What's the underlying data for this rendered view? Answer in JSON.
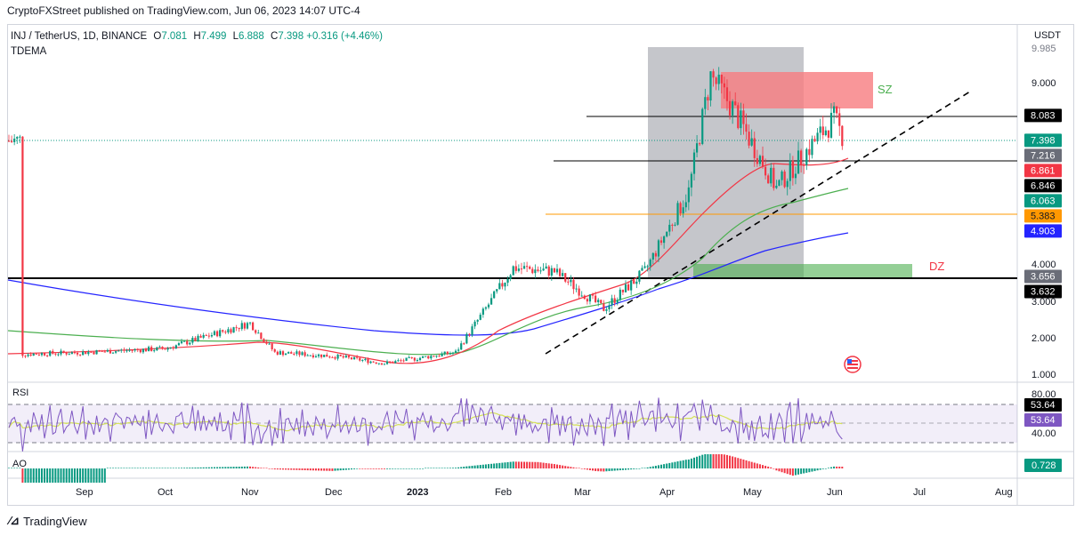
{
  "header": {
    "attribution": "CryptoFXStreet published on TradingView.com, Jun 06, 2023 14:07 UTC-4",
    "symbol": "INJ / TetherUS, 1D, BINANCE",
    "open_label": "O",
    "open": "7.081",
    "high_label": "H",
    "high": "7.499",
    "low_label": "L",
    "low": "6.888",
    "close_label": "C",
    "close": "7.398",
    "change": "+0.316 (+4.46%)",
    "indicator": "TDEMA"
  },
  "price_axis": {
    "unit": "USDT",
    "ticks": [
      "9.000",
      "4.000",
      "3.000",
      "2.000",
      "1.000"
    ],
    "partial_top": "9.985"
  },
  "time_axis": [
    "Sep",
    "Oct",
    "Nov",
    "Dec",
    "2023",
    "Feb",
    "Mar",
    "Apr",
    "May",
    "Jun",
    "Jul",
    "Aug"
  ],
  "zones": {
    "supply": "SZ",
    "demand": "DZ"
  },
  "price_labels": [
    {
      "text": "8.083",
      "bg": "#000000",
      "fg": "#ffffff",
      "value": 8.083
    },
    {
      "text": "7.398",
      "bg": "#089981",
      "fg": "#ffffff",
      "value": 7.398
    },
    {
      "text": "7.216",
      "bg": "#6a6d78",
      "fg": "#ffffff",
      "value": 7.216
    },
    {
      "text": "6.861",
      "bg": "#f23645",
      "fg": "#ffffff",
      "value": 6.861
    },
    {
      "text": "6.846",
      "bg": "#000000",
      "fg": "#ffffff",
      "value": 6.846
    },
    {
      "text": "6.063",
      "bg": "#089981",
      "fg": "#ffffff",
      "value": 6.063
    },
    {
      "text": "5.383",
      "bg": "#ff9800",
      "fg": "#131722",
      "value": 5.383
    },
    {
      "text": "4.903",
      "bg": "#2424ff",
      "fg": "#ffffff",
      "value": 4.903
    },
    {
      "text": "3.656",
      "bg": "#6a6d78",
      "fg": "#ffffff",
      "value": 3.656
    },
    {
      "text": "3.632",
      "bg": "#000000",
      "fg": "#ffffff",
      "value": 3.632
    }
  ],
  "rsi": {
    "label": "RSI",
    "ticks": [
      "80.00",
      "40.00"
    ],
    "value_labels": [
      "53.64",
      "53.64"
    ]
  },
  "ao": {
    "label": "AO",
    "value": "0.728"
  },
  "footer": {
    "brand": "TradingView"
  },
  "colors": {
    "up": "#089981",
    "down": "#f23645",
    "tdema_red": "#f23645",
    "tdema_green": "#4caf50",
    "tdema_blue": "#2424ff",
    "rsi_line": "#7e57c2",
    "rsi_ma": "#d4e157"
  },
  "chart_data": {
    "type": "candlestick",
    "x_range": [
      "2023-08-05",
      "2023-08-22"
    ],
    "period": "1D",
    "closes_approx": [
      {
        "date": "2022-08-10",
        "close": 1.55
      },
      {
        "date": "2022-09-01",
        "close": 1.6
      },
      {
        "date": "2022-10-01",
        "close": 1.7
      },
      {
        "date": "2022-11-01",
        "close": 2.4
      },
      {
        "date": "2022-11-10",
        "close": 1.6
      },
      {
        "date": "2022-12-01",
        "close": 1.5
      },
      {
        "date": "2022-12-20",
        "close": 1.3
      },
      {
        "date": "2023-01-15",
        "close": 1.6
      },
      {
        "date": "2023-02-05",
        "close": 3.9
      },
      {
        "date": "2023-02-20",
        "close": 3.8
      },
      {
        "date": "2023-03-10",
        "close": 2.8
      },
      {
        "date": "2023-03-25",
        "close": 3.8
      },
      {
        "date": "2023-04-10",
        "close": 6.0
      },
      {
        "date": "2023-04-18",
        "close": 9.2
      },
      {
        "date": "2023-04-26",
        "close": 8.3
      },
      {
        "date": "2023-05-12",
        "close": 6.1
      },
      {
        "date": "2023-05-25",
        "close": 7.3
      },
      {
        "date": "2023-06-02",
        "close": 8.0
      },
      {
        "date": "2023-06-06",
        "close": 7.398
      }
    ],
    "levels": [
      8.083,
      6.846,
      5.383,
      3.632
    ],
    "supply_zone": [
      8.083,
      9.2
    ],
    "demand_zone": [
      3.632,
      4.0
    ],
    "rsi_range": [
      40,
      80
    ],
    "ao_latest": 0.728
  }
}
